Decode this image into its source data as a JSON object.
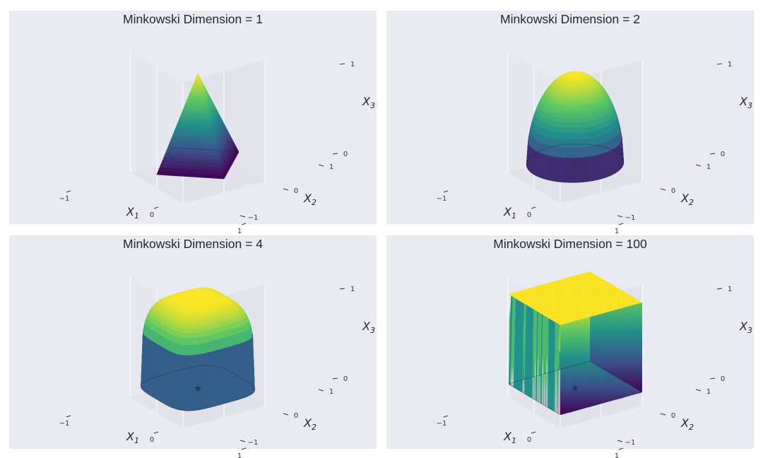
{
  "chart_data": [
    {
      "type": "surface3d",
      "title": "Minkowski Dimension = 1",
      "minkowski_p": 1,
      "xlabel": "X1",
      "ylabel": "X2",
      "zlabel": "X3",
      "xticks": [
        "−1",
        "0",
        "1"
      ],
      "yticks": [
        "−1",
        "0",
        "1"
      ],
      "zticks": [
        "0",
        "1"
      ],
      "xlim": [
        -1,
        1
      ],
      "ylim": [
        -1,
        1
      ],
      "zlim": [
        0,
        1
      ],
      "center_marker": "★",
      "colormap": [
        "#440154",
        "#3b528b",
        "#21918c",
        "#5ec962",
        "#fde725"
      ]
    },
    {
      "type": "surface3d",
      "title": "Minkowski Dimension = 2",
      "minkowski_p": 2,
      "xlabel": "X1",
      "ylabel": "X2",
      "zlabel": "X3",
      "xticks": [
        "−1",
        "0",
        "1"
      ],
      "yticks": [
        "−1",
        "0",
        "1"
      ],
      "zticks": [
        "0",
        "1"
      ],
      "xlim": [
        -1,
        1
      ],
      "ylim": [
        -1,
        1
      ],
      "zlim": [
        0,
        1
      ],
      "center_marker": "★",
      "colormap": [
        "#440154",
        "#3b528b",
        "#21918c",
        "#5ec962",
        "#fde725"
      ]
    },
    {
      "type": "surface3d",
      "title": "Minkowski Dimension = 4",
      "minkowski_p": 4,
      "xlabel": "X1",
      "ylabel": "X2",
      "zlabel": "X3",
      "xticks": [
        "−1",
        "0",
        "1"
      ],
      "yticks": [
        "−1",
        "0",
        "1"
      ],
      "zticks": [
        "0",
        "1"
      ],
      "xlim": [
        -1,
        1
      ],
      "ylim": [
        -1,
        1
      ],
      "zlim": [
        0,
        1
      ],
      "center_marker": "★",
      "colormap": [
        "#440154",
        "#3b528b",
        "#21918c",
        "#5ec962",
        "#fde725"
      ]
    },
    {
      "type": "surface3d",
      "title": "Minkowski Dimension = 100",
      "minkowski_p": 100,
      "xlabel": "X1",
      "ylabel": "X2",
      "zlabel": "X3",
      "xticks": [
        "−1",
        "0",
        "1"
      ],
      "yticks": [
        "−1",
        "0",
        "1"
      ],
      "zticks": [
        "0",
        "1"
      ],
      "xlim": [
        -1,
        1
      ],
      "ylim": [
        -1,
        1
      ],
      "zlim": [
        0,
        1
      ],
      "center_marker": "★",
      "colormap": [
        "#440154",
        "#3b528b",
        "#21918c",
        "#5ec962",
        "#fde725"
      ]
    }
  ]
}
